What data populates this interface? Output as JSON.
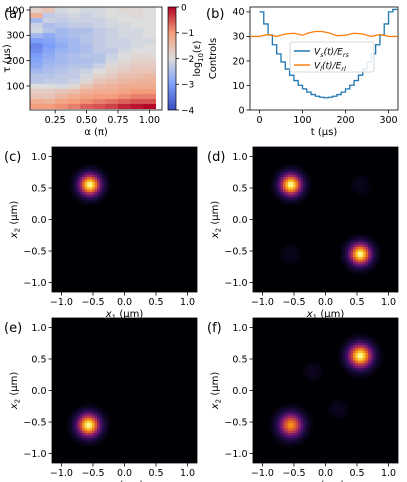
{
  "chart_data": [
    {
      "panel": "(a)",
      "type": "heatmap",
      "xlabel": "α (π)",
      "ylabel": "τ (μs)",
      "x_ticks": [
        "0.25",
        "0.50",
        "0.75",
        "1.00"
      ],
      "y_ticks": [
        "100",
        "200",
        "300",
        "400"
      ],
      "xlim": [
        0.05,
        1.1
      ],
      "ylim": [
        5,
        412
      ],
      "x": [
        0.1,
        0.2,
        0.3,
        0.4,
        0.5,
        0.6,
        0.7,
        0.8,
        0.9,
        1.0
      ],
      "y": [
        20,
        40,
        60,
        80,
        100,
        120,
        140,
        160,
        180,
        200,
        220,
        240,
        260,
        280,
        300,
        320,
        340,
        360,
        380,
        400
      ],
      "values": [
        [
          -1.0,
          -1.0,
          -0.9,
          -0.8,
          -0.6,
          -0.5,
          -0.4,
          -0.2,
          -0.1,
          0.0
        ],
        [
          -1.2,
          -1.3,
          -1.1,
          -1.0,
          -0.9,
          -0.8,
          -0.7,
          -0.6,
          -0.5,
          -0.5
        ],
        [
          -1.6,
          -1.6,
          -1.4,
          -1.2,
          -1.1,
          -1.0,
          -1.0,
          -0.9,
          -0.8,
          -0.8
        ],
        [
          -1.7,
          -1.7,
          -1.6,
          -1.5,
          -1.3,
          -1.2,
          -1.2,
          -1.1,
          -1.0,
          -1.0
        ],
        [
          -2.0,
          -2.0,
          -2.1,
          -1.9,
          -1.6,
          -1.4,
          -1.3,
          -1.2,
          -1.2,
          -1.2
        ],
        [
          -2.4,
          -2.3,
          -2.3,
          -2.2,
          -1.9,
          -1.6,
          -1.5,
          -1.4,
          -1.3,
          -1.3
        ],
        [
          -2.4,
          -2.4,
          -2.3,
          -2.3,
          -2.1,
          -1.8,
          -1.7,
          -1.5,
          -1.5,
          -1.4
        ],
        [
          -2.6,
          -2.5,
          -2.4,
          -2.3,
          -2.2,
          -2.0,
          -1.8,
          -1.7,
          -1.6,
          -1.6
        ],
        [
          -2.8,
          -2.6,
          -2.5,
          -2.4,
          -2.4,
          -2.2,
          -1.9,
          -1.8,
          -1.7,
          -1.7
        ],
        [
          -2.9,
          -2.7,
          -2.6,
          -2.5,
          -2.5,
          -2.4,
          -2.1,
          -1.9,
          -1.8,
          -1.8
        ],
        [
          -3.0,
          -2.8,
          -2.6,
          -2.5,
          -2.4,
          -2.4,
          -2.2,
          -2.0,
          -1.9,
          -1.9
        ],
        [
          -3.2,
          -2.9,
          -2.7,
          -2.6,
          -2.5,
          -2.3,
          -2.3,
          -2.1,
          -2.0,
          -2.0
        ],
        [
          -3.3,
          -3.0,
          -2.8,
          -2.6,
          -2.5,
          -2.3,
          -2.2,
          -2.2,
          -2.1,
          -2.0
        ],
        [
          -3.0,
          -2.9,
          -2.7,
          -2.6,
          -2.4,
          -2.3,
          -2.2,
          -2.2,
          -2.1,
          -2.1
        ],
        [
          -2.6,
          -2.8,
          -2.6,
          -2.5,
          -2.4,
          -2.3,
          -2.2,
          -2.1,
          -2.1,
          -2.0
        ],
        [
          -2.1,
          -2.4,
          -2.6,
          -2.5,
          -2.5,
          -2.3,
          -2.2,
          -2.1,
          -2.1,
          -2.0
        ],
        [
          -2.2,
          -2.5,
          -2.4,
          -2.3,
          -2.3,
          -2.2,
          -2.1,
          -2.1,
          -2.0,
          -2.0
        ],
        [
          -2.6,
          -2.2,
          -2.3,
          -2.2,
          -2.2,
          -2.2,
          -2.1,
          -2.0,
          -2.0,
          -2.0
        ],
        [
          -1.3,
          -2.3,
          -2.2,
          -2.1,
          -2.2,
          -2.1,
          -2.0,
          -2.0,
          -1.9,
          -2.0
        ],
        [
          -1.8,
          -1.6,
          -2.1,
          -2.0,
          -2.1,
          -2.1,
          -2.0,
          -1.9,
          -1.9,
          -2.0
        ]
      ],
      "colorbar": {
        "label": "log10(ε)",
        "range": [
          -4,
          0
        ],
        "ticks": [
          "0",
          "−1",
          "−2",
          "−3",
          "−4"
        ],
        "colormap": "coolwarm"
      }
    },
    {
      "panel": "(b)",
      "type": "line",
      "xlabel": "t (μs)",
      "ylabel": "Controls",
      "x_ticks": [
        "0",
        "100",
        "200",
        "300"
      ],
      "y_ticks": [
        "0",
        "10",
        "20",
        "30",
        "40"
      ],
      "xlim": [
        -22,
        322
      ],
      "ylim": [
        0,
        42
      ],
      "legend": "center",
      "series": [
        {
          "name": "Vs(t)/Ers",
          "color": "#1f77b4",
          "x": [
            0,
            10,
            20,
            30,
            40,
            50,
            60,
            70,
            80,
            90,
            100,
            110,
            120,
            130,
            140,
            150,
            160,
            170,
            180,
            190,
            200,
            210,
            220,
            230,
            240,
            250,
            260,
            270,
            280,
            290,
            300,
            310
          ],
          "y": [
            40,
            35.1,
            30.6,
            26.6,
            22.9,
            19.6,
            16.7,
            14.2,
            12.0,
            10.1,
            8.6,
            7.3,
            6.3,
            5.6,
            5.2,
            5.0,
            5.2,
            5.6,
            6.3,
            7.3,
            8.6,
            10.1,
            12.0,
            14.2,
            16.7,
            19.6,
            22.9,
            26.6,
            30.6,
            35.1,
            40.0,
            41.0
          ]
        },
        {
          "name": "Vl(t)/Erl",
          "color": "#ff7f0e",
          "x": [
            -20,
            0,
            20,
            40,
            60,
            80,
            100,
            115,
            130,
            145,
            160,
            180,
            200,
            220,
            240,
            260,
            280,
            300,
            320
          ],
          "y": [
            30.0,
            30.0,
            30.8,
            30.0,
            31.0,
            31.3,
            30.5,
            31.5,
            32.0,
            32.0,
            31.5,
            30.3,
            30.5,
            31.3,
            31.0,
            30.0,
            30.8,
            30.0,
            30.0
          ]
        }
      ]
    },
    {
      "panel": "(c)",
      "type": "heatmap",
      "xlabel": "x1 (μm)",
      "ylabel": "x2 (μm)",
      "x_ticks": [
        "−1.0",
        "−0.5",
        "0.0",
        "0.5",
        "1.0"
      ],
      "y_ticks": [
        "−1.0",
        "−0.5",
        "0.0",
        "0.5",
        "1.0"
      ],
      "xlim": [
        -1.15,
        1.15
      ],
      "ylim": [
        -1.15,
        1.15
      ],
      "colormap": "inferno",
      "peaks": [
        {
          "x": -0.55,
          "y": 0.55,
          "amplitude": 1.0,
          "width": 0.11
        }
      ]
    },
    {
      "panel": "(d)",
      "type": "heatmap",
      "xlabel": "x1 (μm)",
      "ylabel": "x2 (μm)",
      "x_ticks": [
        "−1.0",
        "−0.5",
        "0.0",
        "0.5",
        "1.0"
      ],
      "y_ticks": [
        "−1.0",
        "−0.5",
        "0.0",
        "0.5",
        "1.0"
      ],
      "xlim": [
        -1.15,
        1.15
      ],
      "ylim": [
        -1.15,
        1.15
      ],
      "colormap": "inferno",
      "peaks": [
        {
          "x": -0.55,
          "y": 0.55,
          "amplitude": 1.0,
          "width": 0.11
        },
        {
          "x": 0.55,
          "y": -0.55,
          "amplitude": 1.0,
          "width": 0.11
        },
        {
          "x": 0.55,
          "y": 0.55,
          "amplitude": 0.03,
          "width": 0.12
        },
        {
          "x": -0.55,
          "y": -0.55,
          "amplitude": 0.03,
          "width": 0.12
        }
      ]
    },
    {
      "panel": "(e)",
      "type": "heatmap",
      "xlabel": "x1 (μm)",
      "ylabel": "x2 (μm)",
      "x_ticks": [
        "−1.0",
        "−0.5",
        "0.0",
        "0.5",
        "1.0"
      ],
      "y_ticks": [
        "−1.0",
        "−0.5",
        "0.0",
        "0.5",
        "1.0"
      ],
      "xlim": [
        -1.15,
        1.15
      ],
      "ylim": [
        -1.15,
        1.15
      ],
      "colormap": "inferno",
      "peaks": [
        {
          "x": -0.57,
          "y": -0.55,
          "amplitude": 1.0,
          "width": 0.115
        }
      ]
    },
    {
      "panel": "(f)",
      "type": "heatmap",
      "xlabel": "x1 (μm)",
      "ylabel": "x2 (μm)",
      "x_ticks": [
        "−1.0",
        "−0.5",
        "0.0",
        "0.5",
        "1.0"
      ],
      "y_ticks": [
        "−1.0",
        "−0.5",
        "0.0",
        "0.5",
        "1.0"
      ],
      "xlim": [
        -1.15,
        1.15
      ],
      "ylim": [
        -1.15,
        1.15
      ],
      "colormap": "inferno",
      "peaks": [
        {
          "x": 0.55,
          "y": 0.55,
          "amplitude": 1.0,
          "width": 0.12
        },
        {
          "x": -0.55,
          "y": -0.55,
          "amplitude": 0.75,
          "width": 0.12
        },
        {
          "x": -0.2,
          "y": 0.3,
          "amplitude": 0.04,
          "width": 0.1
        },
        {
          "x": 0.2,
          "y": -0.3,
          "amplitude": 0.04,
          "width": 0.1
        }
      ]
    }
  ]
}
